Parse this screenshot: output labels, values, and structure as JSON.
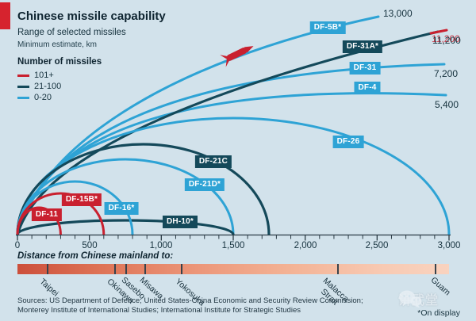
{
  "colors": {
    "background": "#d2e2eb",
    "red": "#c9202f",
    "dark_blue": "#14495a",
    "light_blue": "#2ea3d5",
    "text": "#16323e",
    "brand_tab_red": "#d6232e",
    "bar_gradient": [
      "#cc4f3b",
      "#eb9477",
      "#f9d3bf"
    ]
  },
  "header": {
    "title": "Chinese missile capability",
    "subtitle": "Range of selected missiles",
    "unit_note": "Minimum estimate, km"
  },
  "legend": {
    "title": "Number of missiles",
    "items": [
      {
        "label": "101+",
        "color": "#c9202f"
      },
      {
        "label": "21-100",
        "color": "#14495a"
      },
      {
        "label": "0-20",
        "color": "#2ea3d5"
      }
    ]
  },
  "chart_data": {
    "type": "line",
    "title": "Chinese missile capability",
    "subtitle": "Range of selected missiles",
    "units": "km, minimum estimate",
    "x_axis": {
      "range_km": [
        0,
        3000
      ],
      "tick_labels": [
        "0",
        "500",
        "1,000",
        "1,500",
        "2,000",
        "2,500",
        "3,000"
      ],
      "minor_tick_interval_km": 100
    },
    "series_note": "arc radius = missile range; color = number of missiles",
    "missiles": [
      {
        "name": "DF-11",
        "range_km": 300,
        "missile_count": "101+"
      },
      {
        "name": "DF-15B*",
        "range_km": 600,
        "missile_count": "101+"
      },
      {
        "name": "DF-16*",
        "range_km": 800,
        "missile_count": "0-20"
      },
      {
        "name": "DH-10*",
        "range_km": 1500,
        "missile_count": "21-100"
      },
      {
        "name": "DF-21D*",
        "range_km": 1500,
        "missile_count": "0-20"
      },
      {
        "name": "DF-21C",
        "range_km": 1750,
        "missile_count": "21-100"
      },
      {
        "name": "DF-26",
        "range_km": 3000,
        "missile_count": "0-20"
      },
      {
        "name": "DF-4",
        "range_km": 5400,
        "missile_count": "0-20",
        "range_label": "5,400"
      },
      {
        "name": "DF-31",
        "range_km": 7200,
        "missile_count": "0-20",
        "range_label": "7,200"
      },
      {
        "name": "DF-31A*",
        "range_km": 11200,
        "missile_count": "21-100",
        "range_label": "11,200"
      },
      {
        "name": "DF-5B*",
        "range_km": 13000,
        "missile_count": "0-20",
        "range_label": "13,000"
      }
    ],
    "footnote": "*On display"
  },
  "footer": {
    "distance_label": "Distance from Chinese mainland to:",
    "cities": [
      {
        "name": "Taipei",
        "approx_distance_km": 200
      },
      {
        "name": "Okinawa",
        "approx_distance_km": 670
      },
      {
        "name": "Sasebo",
        "approx_distance_km": 750
      },
      {
        "name": "Misawa",
        "approx_distance_km": 880
      },
      {
        "name": "Yokosuka",
        "approx_distance_km": 1140
      },
      {
        "name": "Malacca\nStrait",
        "approx_distance_km": 2220
      },
      {
        "name": "Guam",
        "approx_distance_km": 2900
      }
    ],
    "sources_line1": "Sources: US Department of Defence; United States-China Economic and Security Review Commission;",
    "sources_line2": "Monterey Institute of International Studies; International Institute for Strategic Studies",
    "on_display": "*On display",
    "watermark": "讲武堂"
  }
}
